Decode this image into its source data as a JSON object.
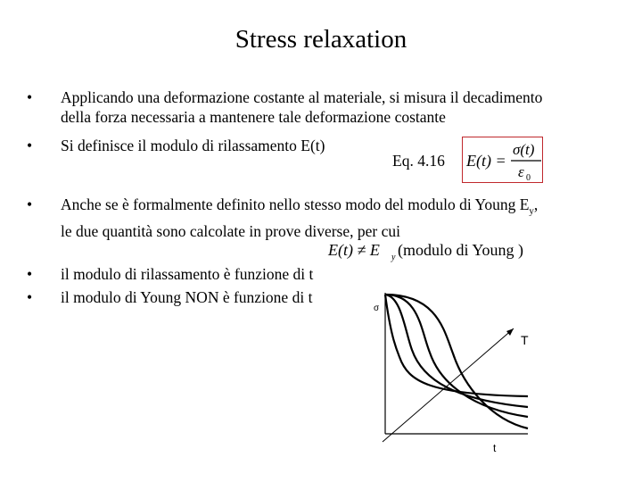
{
  "title": "Stress relaxation",
  "bullets": [
    {
      "marker": "•",
      "lines": [
        "Applicando una deformazione costante al materiale, si misura il decadimento",
        "della forza necessaria a mantenere tale deformazione costante"
      ]
    },
    {
      "marker": "•",
      "lines": [
        "Si definisce il modulo di rilassamento E(t)"
      ]
    },
    {
      "marker": "•",
      "lines": [
        "Anche se è formalmente definito nello stesso modo del modulo di Young E",
        "le due quantità sono calcolate in prove diverse, per cui"
      ],
      "subscript": "y",
      "suffix": ","
    },
    {
      "marker": "•",
      "lines": [
        "il modulo di rilassamento è funzione di t"
      ]
    },
    {
      "marker": "•",
      "lines": [
        "il modulo di Young NON è funzione di t"
      ]
    }
  ],
  "equation": {
    "label": "Eq. 4.16",
    "lhs": "E(t) =",
    "numerator": "σ(t)",
    "denominator": "ε",
    "denominator_sub": "0"
  },
  "inequality": {
    "lhs": "E(t) ≠ E",
    "sub": "y",
    "paren_text": "(modulo di Young )"
  },
  "graph": {
    "y_label": "σ",
    "x_label": "t",
    "arrow_label": "T",
    "accent_color": "#c0282d"
  }
}
